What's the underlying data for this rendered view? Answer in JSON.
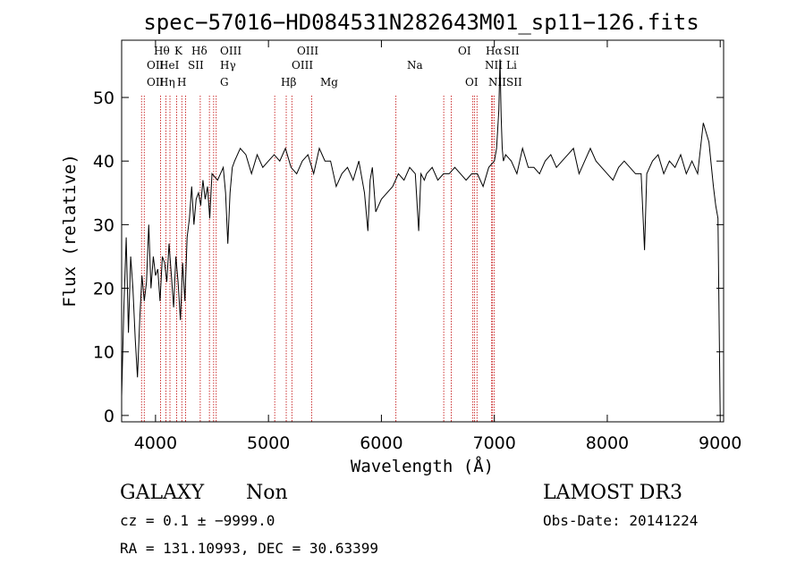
{
  "chart_data": {
    "type": "line",
    "title": "spec−57016−HD084531N282643M01_sp11−126.fits",
    "xlabel": "Wavelength (Å)",
    "ylabel": "Flux (relative)",
    "xlim": [
      3700,
      9030
    ],
    "ylim": [
      -1,
      59
    ],
    "xticks": [
      4000,
      5000,
      6000,
      7000,
      8000,
      9000
    ],
    "yticks": [
      0,
      10,
      20,
      30,
      40,
      50
    ],
    "grid": false,
    "series": [
      {
        "x": [
          3700,
          3720,
          3740,
          3760,
          3780,
          3800,
          3820,
          3840,
          3860,
          3880,
          3900,
          3920,
          3940,
          3960,
          3980,
          4000,
          4020,
          4040,
          4060,
          4080,
          4100,
          4120,
          4140,
          4160,
          4180,
          4200,
          4220,
          4240,
          4260,
          4280,
          4300,
          4320,
          4340,
          4360,
          4380,
          4400,
          4420,
          4440,
          4460,
          4480,
          4500,
          4550,
          4600,
          4620,
          4640,
          4660,
          4680,
          4700,
          4750,
          4800,
          4850,
          4900,
          4950,
          5000,
          5050,
          5100,
          5150,
          5200,
          5250,
          5300,
          5350,
          5400,
          5450,
          5500,
          5550,
          5600,
          5650,
          5700,
          5750,
          5800,
          5850,
          5880,
          5900,
          5920,
          5950,
          6000,
          6050,
          6100,
          6150,
          6200,
          6250,
          6300,
          6330,
          6350,
          6380,
          6400,
          6450,
          6500,
          6550,
          6600,
          6650,
          6700,
          6750,
          6800,
          6850,
          6900,
          6950,
          7000,
          7020,
          7040,
          7050,
          7060,
          7070,
          7080,
          7100,
          7150,
          7200,
          7250,
          7300,
          7350,
          7400,
          7450,
          7500,
          7550,
          7600,
          7650,
          7700,
          7750,
          7800,
          7850,
          7900,
          7950,
          8000,
          8050,
          8100,
          8150,
          8200,
          8250,
          8300,
          8330,
          8350,
          8400,
          8450,
          8500,
          8550,
          8600,
          8650,
          8700,
          8750,
          8800,
          8850,
          8900,
          8940,
          8960,
          8980,
          9000
        ],
        "y": [
          3,
          17,
          28,
          13,
          25,
          20,
          12,
          6,
          15,
          22,
          18,
          21,
          30,
          20,
          25,
          22,
          23,
          18,
          25,
          24,
          21,
          27,
          22,
          17,
          25,
          21,
          15,
          24,
          18,
          28,
          31,
          36,
          30,
          34,
          35,
          33,
          37,
          34,
          36,
          31,
          38,
          37,
          39,
          35,
          27,
          35,
          39,
          40,
          42,
          41,
          38,
          41,
          39,
          40,
          41,
          40,
          42,
          39,
          38,
          40,
          41,
          38,
          42,
          40,
          40,
          36,
          38,
          39,
          37,
          40,
          35,
          29,
          37,
          39,
          32,
          34,
          35,
          36,
          38,
          37,
          39,
          38,
          29,
          38,
          37,
          38,
          39,
          37,
          38,
          38,
          39,
          38,
          37,
          38,
          38,
          36,
          39,
          40,
          42,
          48,
          56,
          47,
          42,
          40,
          41,
          40,
          38,
          42,
          39,
          39,
          38,
          40,
          41,
          39,
          40,
          41,
          42,
          38,
          40,
          42,
          40,
          39,
          38,
          37,
          39,
          40,
          39,
          38,
          38,
          26,
          38,
          40,
          41,
          38,
          40,
          39,
          41,
          38,
          40,
          38,
          46,
          43,
          36,
          33,
          31,
          0
        ]
      }
    ],
    "line_markers": [
      {
        "wavelength": 3727,
        "label": "OII"
      },
      {
        "wavelength": 3750,
        "label": "OII"
      },
      {
        "wavelength": 3889,
        "label": "Hθ"
      },
      {
        "wavelength": 4026,
        "label": "HeI"
      },
      {
        "wavelength": 4070,
        "label": "Hη"
      },
      {
        "wavelength": 4102,
        "label": "Hδ"
      },
      {
        "wavelength": 4227,
        "label": "SII"
      },
      {
        "wavelength": 4305,
        "label": "G"
      },
      {
        "wavelength": 4341,
        "label": "Hγ"
      },
      {
        "wavelength": 4363,
        "label": "OIII"
      },
      {
        "wavelength": 4861,
        "label": "Hβ"
      },
      {
        "wavelength": 4959,
        "label": "OIII"
      },
      {
        "wavelength": 5007,
        "label": "OIII"
      },
      {
        "wavelength": 5175,
        "label": "Mg"
      },
      {
        "wavelength": 5893,
        "label": "Na"
      },
      {
        "wavelength": 6300,
        "label": "OI"
      },
      {
        "wavelength": 6364,
        "label": "OI"
      },
      {
        "wavelength": 6548,
        "label": "NII"
      },
      {
        "wavelength": 6563,
        "label": "Hα"
      },
      {
        "wavelength": 6583,
        "label": "NII"
      },
      {
        "wavelength": 6708,
        "label": "Li"
      },
      {
        "wavelength": 6716,
        "label": "SII"
      },
      {
        "wavelength": 6731,
        "label": "SII"
      },
      {
        "wavelength": 3934,
        "label": "K"
      },
      {
        "wavelength": 3969,
        "label": "H"
      }
    ]
  },
  "info": {
    "class": "GALAXY",
    "subclass": "Non",
    "survey": "LAMOST DR3",
    "cz": "cz = 0.1 ± −9999.0",
    "obs_date": "Obs-Date: 20141224",
    "radec": "RA = 131.10993, DEC =  30.63399"
  },
  "colors": {
    "spectrum": "#000000",
    "marker": "#c00000",
    "axis": "#000000"
  }
}
